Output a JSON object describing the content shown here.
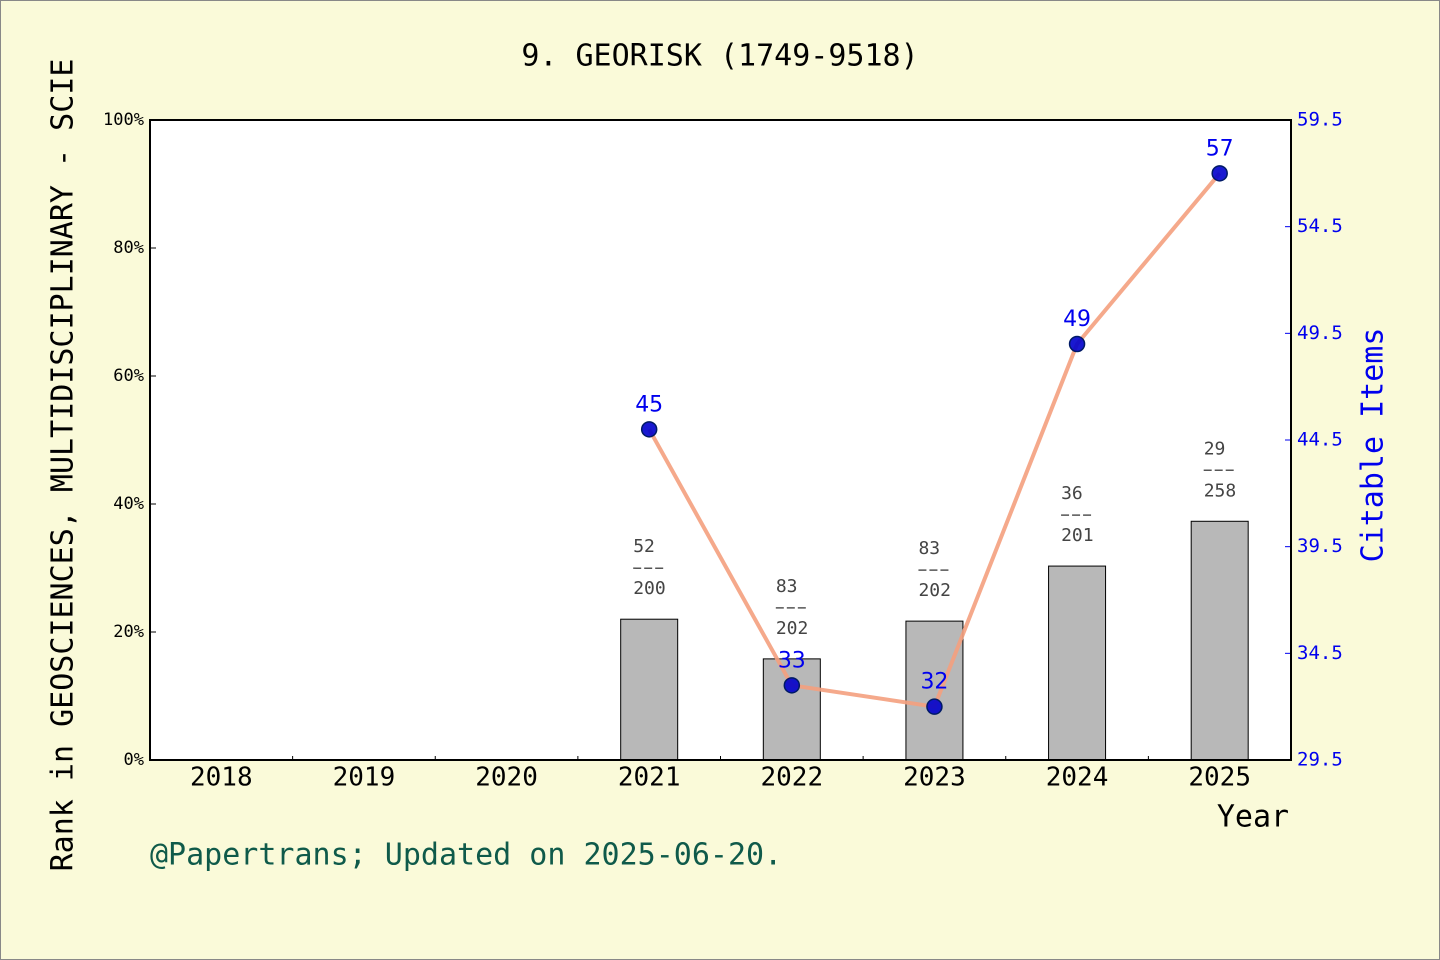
{
  "chart_data": {
    "type": "bar-line",
    "title": "9. GEORISK (1749-9518)",
    "xlabel": "Year",
    "ylabel": "Rank in GEOSCIENCES, MULTIDISCIPLINARY - SCIE",
    "y2label": "Citable Items",
    "footer": "@Papertrans; Updated on 2025-06-20.",
    "categories": [
      "2018",
      "2019",
      "2020",
      "2021",
      "2022",
      "2023",
      "2024",
      "2025"
    ],
    "series": [
      {
        "type": "bar",
        "color": "#b8b8b8",
        "values": [
          null,
          null,
          null,
          22,
          15.8,
          21.7,
          30.3,
          37.3
        ],
        "annotations": [
          null,
          null,
          null,
          {
            "rank": 52,
            "total": 200
          },
          {
            "rank": 83,
            "total": 202
          },
          {
            "rank": 83,
            "total": 202
          },
          {
            "rank": 36,
            "total": 201
          },
          {
            "rank": 29,
            "total": 258
          }
        ]
      },
      {
        "type": "line",
        "axis": "y2",
        "color": "#f4a07e",
        "marker_color": "#0000cc",
        "values": [
          null,
          null,
          null,
          45,
          33,
          32,
          49,
          57
        ]
      }
    ],
    "ylim": [
      0,
      100
    ],
    "yticks": [
      {
        "value": 0,
        "label": "0%"
      },
      {
        "value": 20,
        "label": "20%"
      },
      {
        "value": 40,
        "label": "40%"
      },
      {
        "value": 60,
        "label": "60%"
      },
      {
        "value": 80,
        "label": "80%"
      },
      {
        "value": 100,
        "label": "100%"
      }
    ],
    "y2lim": [
      29.5,
      59.5
    ],
    "y2ticks": [
      29.5,
      34.5,
      39.5,
      44.5,
      49.5,
      54.5,
      59.5
    ]
  }
}
